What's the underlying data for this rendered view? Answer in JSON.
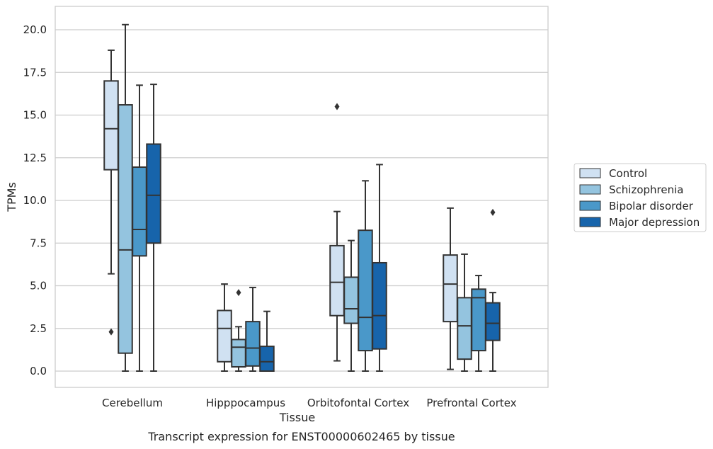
{
  "chart_data": {
    "type": "box",
    "title": "",
    "caption": "Transcript expression for ENST00000602465 by tissue",
    "xlabel": "Tissue",
    "ylabel": "TPMs",
    "ylim": [
      -1.0,
      21.4
    ],
    "yticks": [
      "0.0",
      "2.5",
      "5.0",
      "7.5",
      "10.0",
      "12.5",
      "15.0",
      "17.5",
      "20.0"
    ],
    "ytick_values": [
      0,
      2.5,
      5,
      7.5,
      10,
      12.5,
      15,
      17.5,
      20
    ],
    "grid": "horizontal",
    "legend_position": "right",
    "categories": [
      "Cerebellum",
      "Hipppocampus",
      "Orbitofontal Cortex",
      "Prefrontal Cortex"
    ],
    "series": [
      {
        "name": "Control",
        "color": "#d0e1f2",
        "boxes": [
          {
            "whislo": 5.7,
            "q1": 11.8,
            "med": 14.2,
            "q3": 17.0,
            "whishi": 18.8,
            "fliers": [
              2.3
            ]
          },
          {
            "whislo": 0.0,
            "q1": 0.55,
            "med": 2.5,
            "q3": 3.55,
            "whishi": 5.1,
            "fliers": []
          },
          {
            "whislo": 0.6,
            "q1": 3.25,
            "med": 5.2,
            "q3": 7.35,
            "whishi": 9.35,
            "fliers": [
              15.5
            ]
          },
          {
            "whislo": 0.1,
            "q1": 2.9,
            "med": 5.1,
            "q3": 6.8,
            "whishi": 9.55,
            "fliers": []
          }
        ]
      },
      {
        "name": "Schizophrenia",
        "color": "#94c4df",
        "boxes": [
          {
            "whislo": 0.0,
            "q1": 1.05,
            "med": 7.1,
            "q3": 15.6,
            "whishi": 20.3,
            "fliers": []
          },
          {
            "whislo": 0.0,
            "q1": 0.25,
            "med": 1.4,
            "q3": 1.85,
            "whishi": 2.6,
            "fliers": [
              4.6
            ]
          },
          {
            "whislo": 0.0,
            "q1": 2.8,
            "med": 3.65,
            "q3": 5.5,
            "whishi": 7.65,
            "fliers": []
          },
          {
            "whislo": 0.0,
            "q1": 0.7,
            "med": 2.65,
            "q3": 4.3,
            "whishi": 6.85,
            "fliers": []
          }
        ]
      },
      {
        "name": "Bipolar disorder",
        "color": "#4a98c9",
        "boxes": [
          {
            "whislo": 0.0,
            "q1": 6.75,
            "med": 8.3,
            "q3": 11.95,
            "whishi": 16.75,
            "fliers": []
          },
          {
            "whislo": 0.0,
            "q1": 0.3,
            "med": 1.35,
            "q3": 2.9,
            "whishi": 4.9,
            "fliers": []
          },
          {
            "whislo": 0.0,
            "q1": 1.2,
            "med": 3.15,
            "q3": 8.25,
            "whishi": 11.15,
            "fliers": []
          },
          {
            "whislo": 0.0,
            "q1": 1.2,
            "med": 4.3,
            "q3": 4.8,
            "whishi": 5.6,
            "fliers": []
          }
        ]
      },
      {
        "name": "Major depression",
        "color": "#1764ab",
        "boxes": [
          {
            "whislo": 0.0,
            "q1": 7.5,
            "med": 10.3,
            "q3": 13.3,
            "whishi": 16.8,
            "fliers": []
          },
          {
            "whislo": 0.0,
            "q1": 0.0,
            "med": 0.55,
            "q3": 1.45,
            "whishi": 3.5,
            "fliers": []
          },
          {
            "whislo": 0.0,
            "q1": 1.3,
            "med": 3.25,
            "q3": 6.35,
            "whishi": 12.1,
            "fliers": []
          },
          {
            "whislo": 0.0,
            "q1": 1.8,
            "med": 2.8,
            "q3": 4.0,
            "whishi": 4.6,
            "fliers": [
              9.3
            ]
          }
        ]
      }
    ]
  }
}
